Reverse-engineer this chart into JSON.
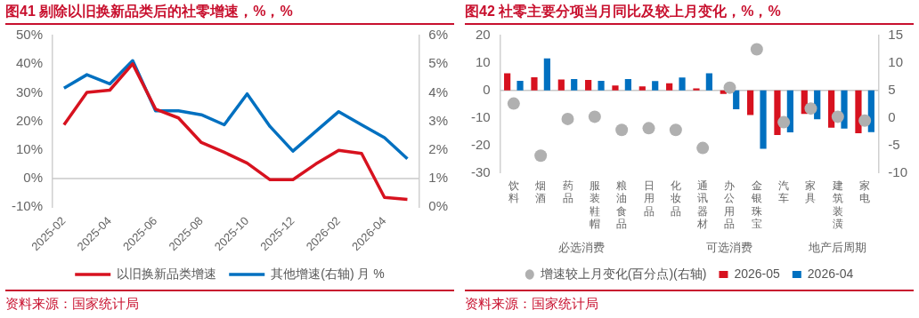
{
  "chart_data": [
    {
      "type": "line",
      "title": "图41  剔除以旧换新品类后的社零增速，%，%",
      "categories": [
        "2025-02",
        null,
        "2025-04",
        null,
        "2025-06",
        null,
        "2025-08",
        null,
        "2025-10",
        null,
        "2025-12",
        null,
        "2026-02",
        null,
        "2026-04",
        null
      ],
      "series": [
        {
          "name": "以旧换新品类增速",
          "color": "#d7121f",
          "values": [
            18.8,
            30.1,
            30.9,
            40.1,
            24.3,
            21.2,
            12.6,
            9.2,
            5.4,
            -0.4,
            -0.4,
            5.1,
            9.9,
            8.8,
            -6.6,
            -7.3
          ]
        },
        {
          "name": "其他增速(右轴) 月 %",
          "color": "#0070c0",
          "axis": "y2",
          "values": [
            4.16,
            4.63,
            4.31,
            5.12,
            3.37,
            3.37,
            3.23,
            2.88,
            3.96,
            2.82,
            1.96,
            2.65,
            3.34,
            2.88,
            2.43,
            1.69
          ]
        }
      ],
      "ylim": [
        -10,
        50
      ],
      "yticks": [
        {
          "value": -10,
          "label": "-10%"
        },
        {
          "value": 0,
          "label": "0%"
        },
        {
          "value": 10,
          "label": "10%"
        },
        {
          "value": 20,
          "label": "20%"
        },
        {
          "value": 30,
          "label": "30%"
        },
        {
          "value": 40,
          "label": "40%"
        },
        {
          "value": 50,
          "label": "50%"
        }
      ],
      "y2lim": [
        0,
        6
      ],
      "y2ticks": [
        {
          "value": 0,
          "label": "0%"
        },
        {
          "value": 1,
          "label": "1%"
        },
        {
          "value": 2,
          "label": "2%"
        },
        {
          "value": 3,
          "label": "3%"
        },
        {
          "value": 4,
          "label": "4%"
        },
        {
          "value": 5,
          "label": "5%"
        },
        {
          "value": 6,
          "label": "6%"
        }
      ],
      "ref_lines": [
        {
          "axis": "y",
          "value": 0,
          "color": "#c8c8c8"
        }
      ],
      "grid": false,
      "legend": "bottom",
      "marker": "none",
      "line_style": "solid",
      "annotations": [
        "资料来源：国家统计局"
      ]
    },
    {
      "type": "bar",
      "title": "图42  社零主要分项当月同比及较上月变化，%，%",
      "categories": [
        "饮料",
        "烟酒",
        "药品",
        "服装鞋帽",
        "粮油食品",
        "日用品",
        "化妆品",
        "通讯器材",
        "办公用品",
        "金银珠宝",
        "汽车",
        "家具",
        "建筑装潢",
        "家电"
      ],
      "series": [
        {
          "name": "2026-05",
          "color": "#d7121f",
          "values": [
            6.2,
            4.8,
            4.0,
            3.8,
            1.8,
            1.5,
            2.6,
            0.7,
            -1.3,
            -9.0,
            -16.3,
            -8.6,
            -13.6,
            -15.6
          ]
        },
        {
          "name": "2026-04",
          "color": "#0070c0",
          "values": [
            3.5,
            11.7,
            4.1,
            3.5,
            4.1,
            3.4,
            4.7,
            6.2,
            -6.9,
            -21.3,
            -15.3,
            -10.5,
            -13.9,
            -15.2
          ]
        },
        {
          "name": "增速较上月变化(百分点)(右轴)",
          "type": "scatter",
          "color": "#b0b0b0",
          "axis": "y2",
          "values": [
            2.6,
            -6.9,
            -0.2,
            0.2,
            -2.2,
            -1.9,
            -2.2,
            -5.5,
            5.5,
            12.5,
            -0.8,
            1.7,
            0.2,
            -0.5
          ]
        }
      ],
      "ylim": [
        -30,
        20
      ],
      "yticks": [
        -30,
        -20,
        -10,
        0,
        10,
        20
      ],
      "y2lim": [
        -10,
        15
      ],
      "y2ticks": [
        -10,
        -5,
        0,
        5,
        10,
        15
      ],
      "ref_lines": [
        {
          "axis": "y",
          "value": 0,
          "color": "#c8c8c8"
        }
      ],
      "grid": false,
      "legend": "bottom",
      "marker": "circle",
      "annotations": [
        "必选消费",
        "可选消费",
        "地产后周期",
        "资料来源：国家统计局"
      ]
    }
  ]
}
